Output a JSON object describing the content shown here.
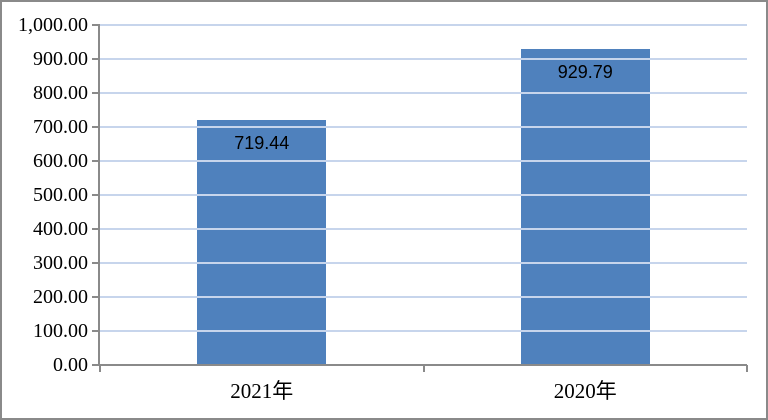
{
  "chart_data": {
    "type": "bar",
    "categories": [
      "2021年",
      "2020年"
    ],
    "values": [
      719.44,
      929.79
    ],
    "data_labels": [
      "719.44",
      "929.79"
    ],
    "title": "",
    "xlabel": "",
    "ylabel": "",
    "ylim": [
      0,
      1000
    ],
    "ytick_step": 100,
    "ytick_labels": [
      "0.00",
      "100.00",
      "200.00",
      "300.00",
      "400.00",
      "500.00",
      "600.00",
      "700.00",
      "800.00",
      "900.00",
      "1,000.00"
    ],
    "grid": true,
    "legend_position": "none",
    "colors": {
      "bar_fill": "#4F81BD",
      "gridline": "#C7D5EC",
      "axis_line": "#8A8A8A",
      "text": "#000000",
      "border": "#8A8A8A",
      "background": "#FFFFFF"
    }
  }
}
